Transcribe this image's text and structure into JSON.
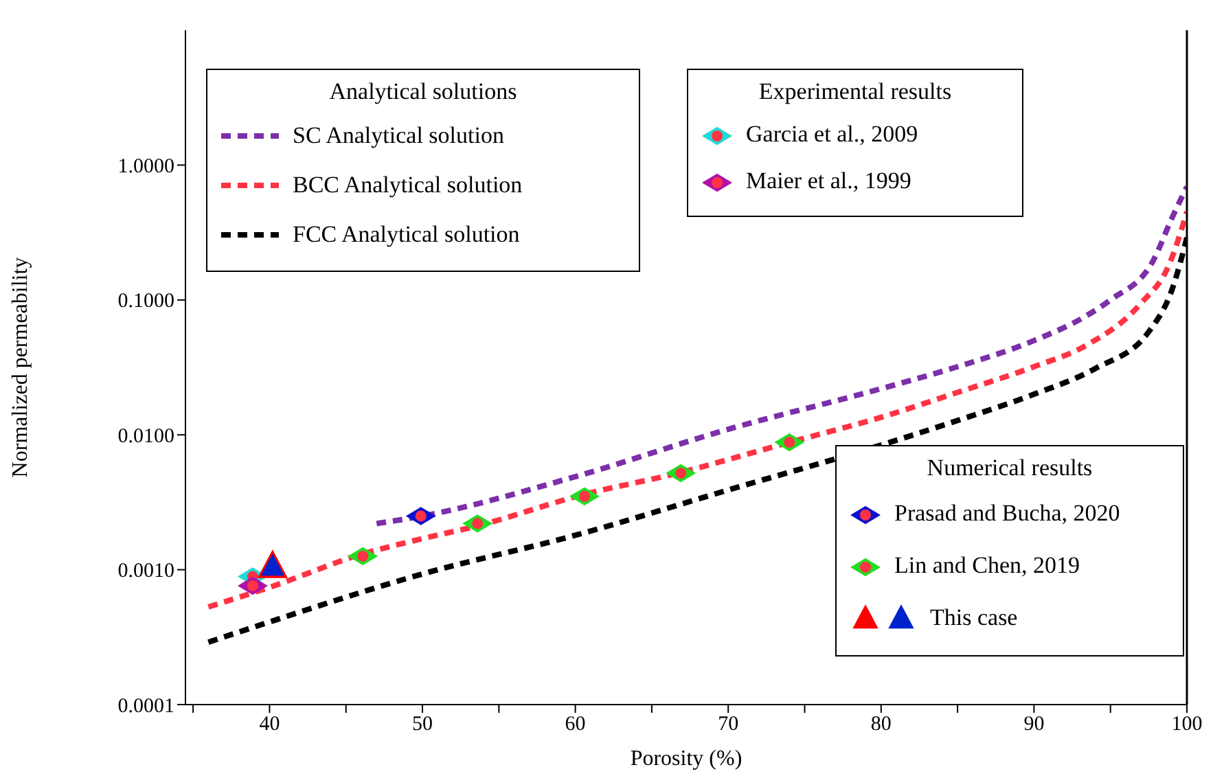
{
  "chart_data": {
    "type": "line",
    "xlabel": "Porosity (%)",
    "ylabel": "Normalized permeability",
    "log": "y",
    "xlim": [
      34.5,
      100
    ],
    "xticks": [
      {
        "value": 35,
        "label": null
      },
      40,
      {
        "value": 45,
        "label": null
      },
      50,
      {
        "value": 55,
        "label": null
      },
      60,
      {
        "value": 65,
        "label": null
      },
      70,
      {
        "value": 75,
        "label": null
      },
      80,
      {
        "value": 85,
        "label": null
      },
      90,
      {
        "value": 95,
        "label": null
      },
      100
    ],
    "ylim": [
      0.0001,
      10
    ],
    "yticks": [
      {
        "value": 0.0001,
        "label": "0.0001"
      },
      {
        "value": 0.001,
        "label": "0.0010"
      },
      {
        "value": 0.01,
        "label": "0.0100"
      },
      {
        "value": 0.1,
        "label": "0.1000"
      },
      {
        "value": 1,
        "label": "1.0000"
      }
    ],
    "legend": "center",
    "line_style": "dashed",
    "annotations": [
      "Analytical solutions",
      "Experimental results",
      "Numerical results"
    ],
    "series": [
      {
        "name": "SC Analytical solution",
        "color": "#7b2fa8",
        "x": [
          47,
          50,
          60,
          70,
          80,
          85,
          90,
          93.4,
          95,
          97.8,
          99,
          100
        ],
        "values": [
          0.0022,
          0.0025,
          0.0049,
          0.011,
          0.022,
          0.032,
          0.05,
          0.076,
          0.1,
          0.196,
          0.4,
          0.69
        ]
      },
      {
        "name": "BCC Analytical solution",
        "color": "#ff3344",
        "x": [
          36,
          40,
          46,
          50,
          53.5,
          60.5,
          66.7,
          74,
          80,
          85.2,
          90,
          93.4,
          96.9,
          98.9,
          100
        ],
        "values": [
          0.00053,
          0.00074,
          0.0013,
          0.0017,
          0.0021,
          0.0036,
          0.0052,
          0.0088,
          0.0135,
          0.021,
          0.032,
          0.046,
          0.092,
          0.19,
          0.45
        ]
      },
      {
        "name": "FCC Analytical solution",
        "color": "#000000",
        "x": [
          36,
          40,
          50,
          60,
          70,
          80,
          85.2,
          90,
          94,
          97.5,
          99.1,
          100
        ],
        "values": [
          0.00029,
          0.00041,
          0.00093,
          0.0018,
          0.0039,
          0.0084,
          0.013,
          0.02,
          0.031,
          0.058,
          0.126,
          0.29
        ]
      },
      {
        "name": "Garcia  et al., 2009",
        "type": "scatter",
        "marker": "diamond",
        "color": "#22d8d8",
        "x": [
          38.9
        ],
        "values": [
          0.00089
        ]
      },
      {
        "name": "Maier et al., 1999",
        "type": "scatter",
        "marker": "diamond",
        "color": "#b010a8",
        "x": [
          38.9
        ],
        "values": [
          0.00076
        ]
      },
      {
        "name": "Prasad and Bucha, 2020",
        "type": "scatter",
        "marker": "diamond",
        "color": "#1010d0",
        "x": [
          49.9
        ],
        "values": [
          0.0025
        ]
      },
      {
        "name": "Lin and Chen, 2019",
        "type": "scatter",
        "marker": "diamond",
        "color": "#22dd22",
        "x": [
          46.1,
          53.6,
          60.6,
          66.9,
          74
        ],
        "values": [
          0.00126,
          0.0022,
          0.0035,
          0.0052,
          0.0088
        ]
      },
      {
        "name": "This case",
        "type": "scatter",
        "marker": "triangle",
        "colors": [
          "#ff0000",
          "#0022cc"
        ],
        "x": [
          40.2,
          40.2
        ],
        "values": [
          0.00104,
          0.00104
        ]
      }
    ]
  }
}
